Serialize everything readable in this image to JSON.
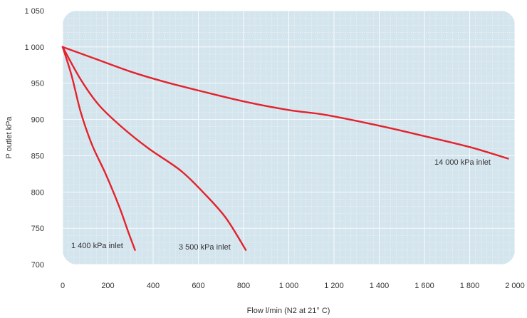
{
  "chart_data": {
    "type": "line",
    "title": "",
    "xlabel": "Flow l/min (N2 at 21° C)",
    "ylabel": "P outlet kPa",
    "xlim": [
      0,
      2000
    ],
    "ylim": [
      700,
      1050
    ],
    "x_ticks": [
      0,
      200,
      400,
      600,
      800,
      1000,
      1200,
      1400,
      1600,
      1800,
      2000
    ],
    "x_tick_labels": [
      "0",
      "200",
      "400",
      "600",
      "800",
      "1 000",
      "1 200",
      "1 400",
      "1 600",
      "1 800",
      "2 000"
    ],
    "y_ticks": [
      700,
      750,
      800,
      850,
      900,
      950,
      1000,
      1050
    ],
    "y_tick_labels": [
      "700",
      "750",
      "800",
      "850",
      "900",
      "950",
      "1 000",
      "1 050"
    ],
    "grid": true,
    "background_color": "#d4e5ee",
    "grid_color": "#ffffff",
    "line_color": "#e3232c",
    "series": [
      {
        "name": "1 400 kPa inlet",
        "points": [
          [
            0,
            1000
          ],
          [
            40,
            960
          ],
          [
            80,
            910
          ],
          [
            130,
            865
          ],
          [
            190,
            825
          ],
          [
            250,
            780
          ],
          [
            290,
            745
          ],
          [
            320,
            720
          ]
        ]
      },
      {
        "name": "3 500 kPa inlet",
        "points": [
          [
            0,
            1000
          ],
          [
            80,
            955
          ],
          [
            160,
            920
          ],
          [
            260,
            890
          ],
          [
            380,
            860
          ],
          [
            520,
            830
          ],
          [
            620,
            800
          ],
          [
            720,
            765
          ],
          [
            810,
            720
          ]
        ]
      },
      {
        "name": "14 000 kPa inlet",
        "points": [
          [
            0,
            1000
          ],
          [
            150,
            983
          ],
          [
            300,
            966
          ],
          [
            450,
            952
          ],
          [
            600,
            940
          ],
          [
            800,
            925
          ],
          [
            1000,
            913
          ],
          [
            1150,
            907
          ],
          [
            1300,
            898
          ],
          [
            1450,
            888
          ],
          [
            1600,
            877
          ],
          [
            1800,
            862
          ],
          [
            1970,
            846
          ]
        ]
      }
    ]
  }
}
